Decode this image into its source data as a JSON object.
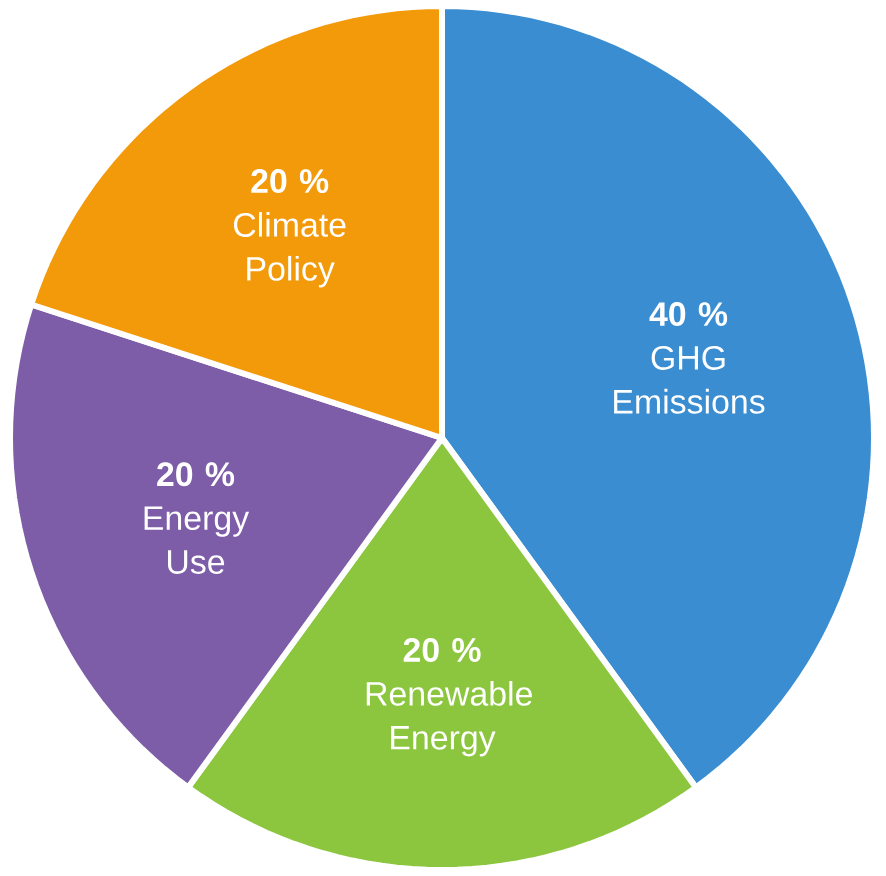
{
  "chart_data": {
    "type": "pie",
    "categories": [
      "GHG Emissions",
      "Renewable Energy",
      "Energy Use",
      "Climate Policy"
    ],
    "values": [
      40,
      20,
      20,
      20
    ],
    "value_labels": [
      "40 %",
      "20 %",
      "20 %",
      "20 %"
    ],
    "colors": [
      "#3a8dd0",
      "#8cc63f",
      "#7d5ca8",
      "#f39a0b"
    ]
  }
}
